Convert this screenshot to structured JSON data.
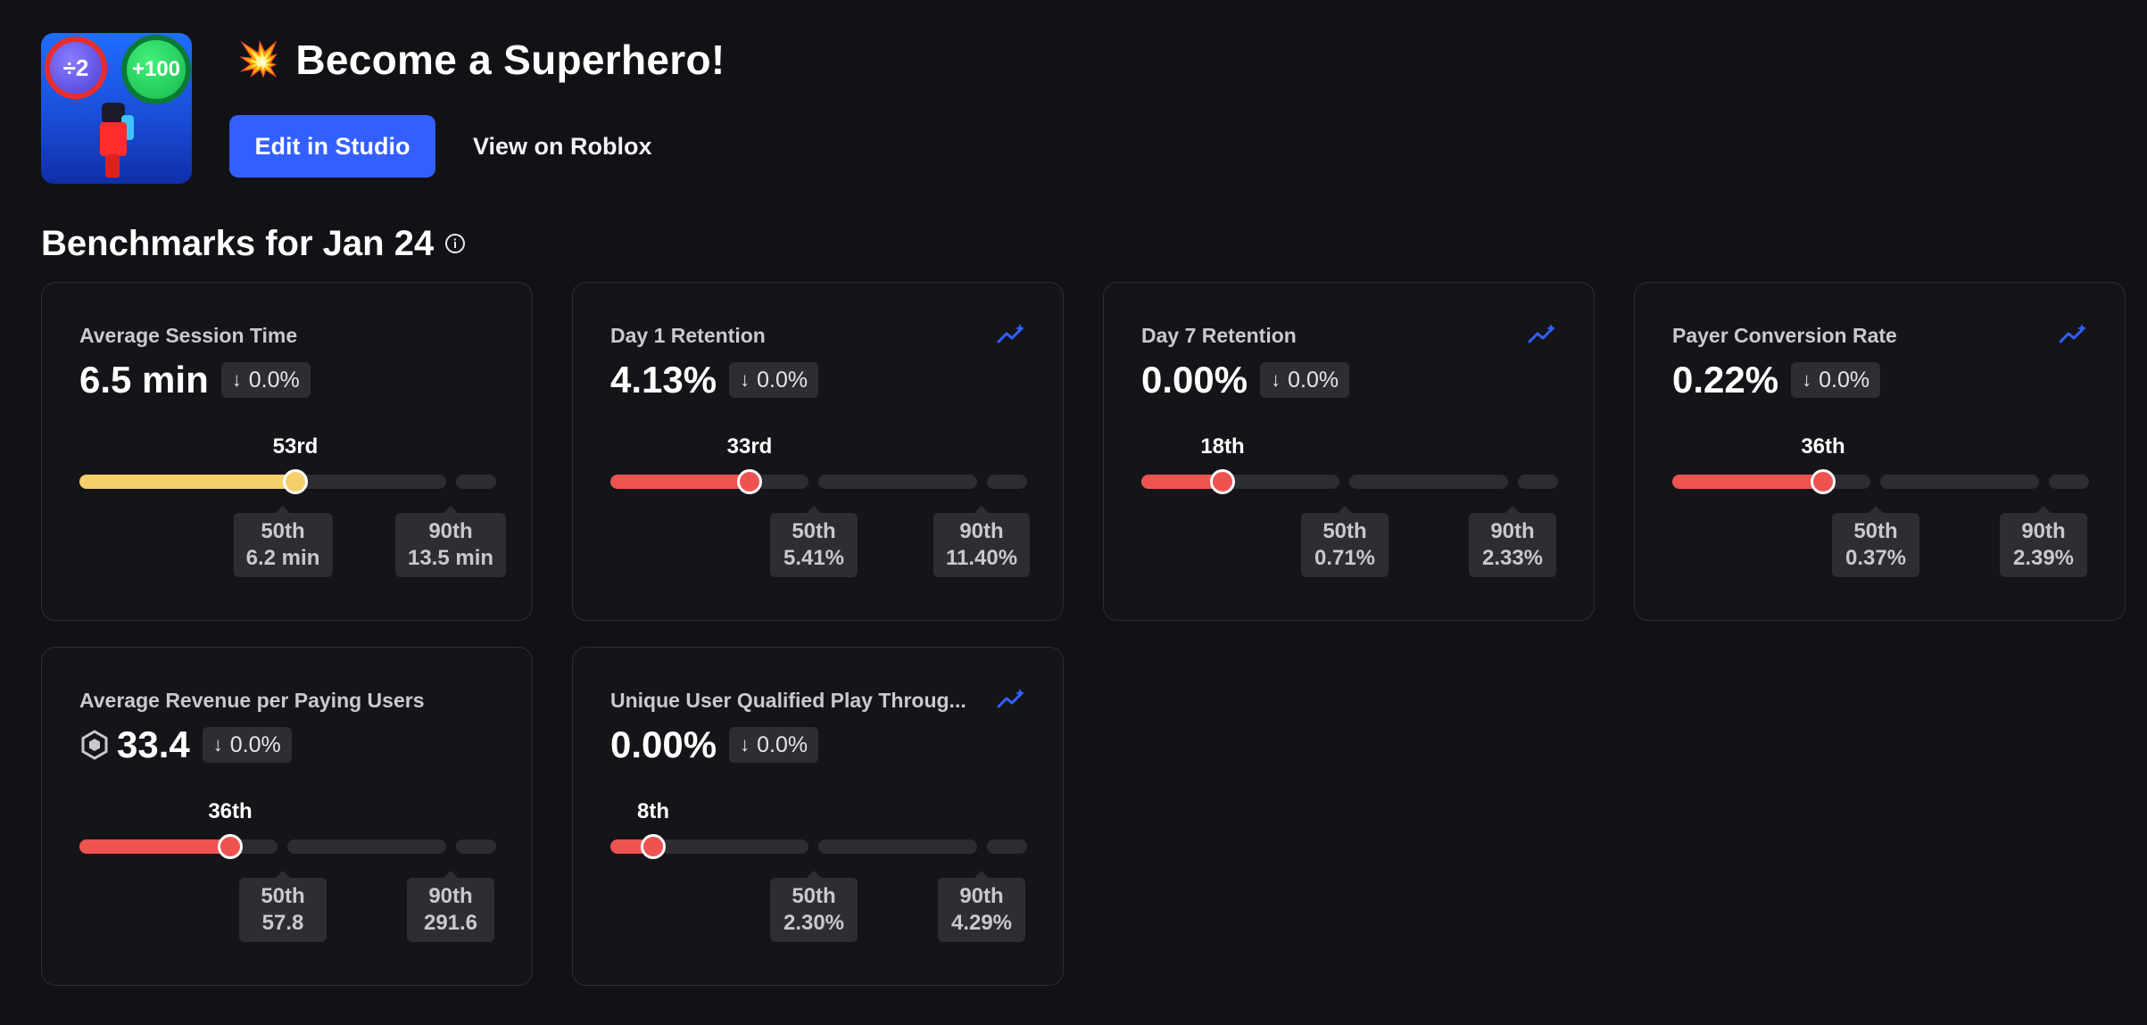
{
  "header": {
    "emoji": "💥",
    "game_title": "Become a Superhero!",
    "thumbnail_badges": [
      "÷2",
      "+100"
    ],
    "edit_button": "Edit in Studio",
    "view_link": "View on Roblox"
  },
  "section": {
    "title": "Benchmarks for Jan 24",
    "info_icon": "info-icon"
  },
  "colors": {
    "accent": "#335fff",
    "yellow": "#f5cf6a",
    "red": "#ef5350",
    "trend_icon": "#335fff"
  },
  "cards": [
    {
      "label": "Average Session Time",
      "value": "6.5 min",
      "delta": "0.0%",
      "delta_icon": "arrow-down-icon",
      "percentile_label": "53rd",
      "percentile": 53,
      "fill_color": "yellow",
      "has_trend_icon": false,
      "p50_label": "50th",
      "p50_value": "6.2 min",
      "p90_label": "90th",
      "p90_value": "13.5 min"
    },
    {
      "label": "Day 1 Retention",
      "value": "4.13%",
      "delta": "0.0%",
      "delta_icon": "arrow-down-icon",
      "percentile_label": "33rd",
      "percentile": 33,
      "fill_color": "red",
      "has_trend_icon": true,
      "p50_label": "50th",
      "p50_value": "5.41%",
      "p90_label": "90th",
      "p90_value": "11.40%"
    },
    {
      "label": "Day 7 Retention",
      "value": "0.00%",
      "delta": "0.0%",
      "delta_icon": "arrow-down-icon",
      "percentile_label": "18th",
      "percentile": 18,
      "fill_color": "red",
      "has_trend_icon": true,
      "p50_label": "50th",
      "p50_value": "0.71%",
      "p90_label": "90th",
      "p90_value": "2.33%"
    },
    {
      "label": "Payer Conversion Rate",
      "value": "0.22%",
      "delta": "0.0%",
      "delta_icon": "arrow-down-icon",
      "percentile_label": "36th",
      "percentile": 36,
      "fill_color": "red",
      "has_trend_icon": true,
      "p50_label": "50th",
      "p50_value": "0.37%",
      "p90_label": "90th",
      "p90_value": "2.39%"
    },
    {
      "label": "Average Revenue per Paying Users",
      "value": "33.4",
      "value_icon": "robux-icon",
      "delta": "0.0%",
      "delta_icon": "arrow-down-icon",
      "percentile_label": "36th",
      "percentile": 36,
      "fill_color": "red",
      "has_trend_icon": false,
      "p50_label": "50th",
      "p50_value": "57.8",
      "p90_label": "90th",
      "p90_value": "291.6"
    },
    {
      "label": "Unique User Qualified Play Throug...",
      "value": "0.00%",
      "delta": "0.0%",
      "delta_icon": "arrow-down-icon",
      "percentile_label": "8th",
      "percentile": 8,
      "fill_color": "red",
      "has_trend_icon": true,
      "p50_label": "50th",
      "p50_value": "2.30%",
      "p90_label": "90th",
      "p90_value": "4.29%"
    }
  ]
}
